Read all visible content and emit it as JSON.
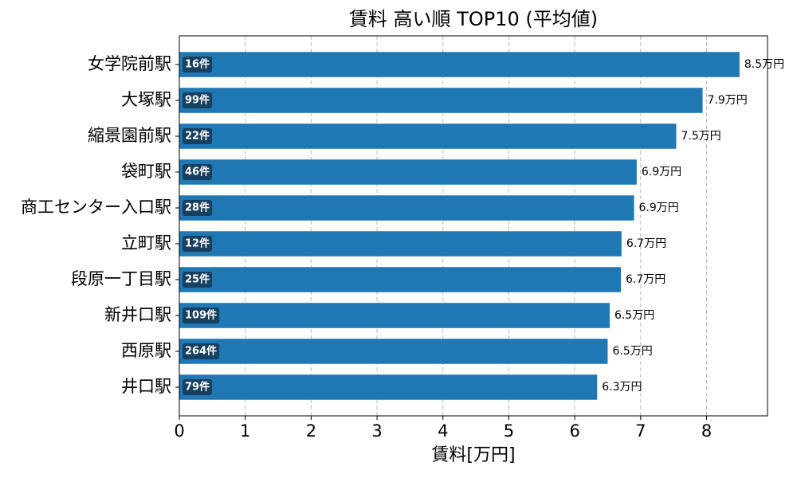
{
  "chart_data": {
    "type": "barh",
    "title": "賃料 高い順 TOP10 (平均値)",
    "x_label": "賃料[万円]",
    "categories": [
      "女学院前駅",
      "大塚駅",
      "縮景園前駅",
      "袋町駅",
      "商工センター入口駅",
      "立町駅",
      "段原一丁目駅",
      "新井口駅",
      "西原駅",
      "井口駅"
    ],
    "values": [
      8.5,
      7.94,
      7.54,
      6.94,
      6.9,
      6.71,
      6.7,
      6.53,
      6.5,
      6.34
    ],
    "value_labels": [
      "8.5万円",
      "7.9万円",
      "7.5万円",
      "6.9万円",
      "6.9万円",
      "6.7万円",
      "6.7万円",
      "6.5万円",
      "6.5万円",
      "6.3万円"
    ],
    "count_labels": [
      "16件",
      "99件",
      "22件",
      "46件",
      "28件",
      "12件",
      "25件",
      "109件",
      "264件",
      "79件"
    ],
    "color": "#1f77b4",
    "badge_color": "#173f5f",
    "xlim": [
      0,
      8.925
    ],
    "xticks": [
      0,
      1,
      2,
      3,
      4,
      5,
      6,
      7,
      8
    ],
    "grid": true
  }
}
